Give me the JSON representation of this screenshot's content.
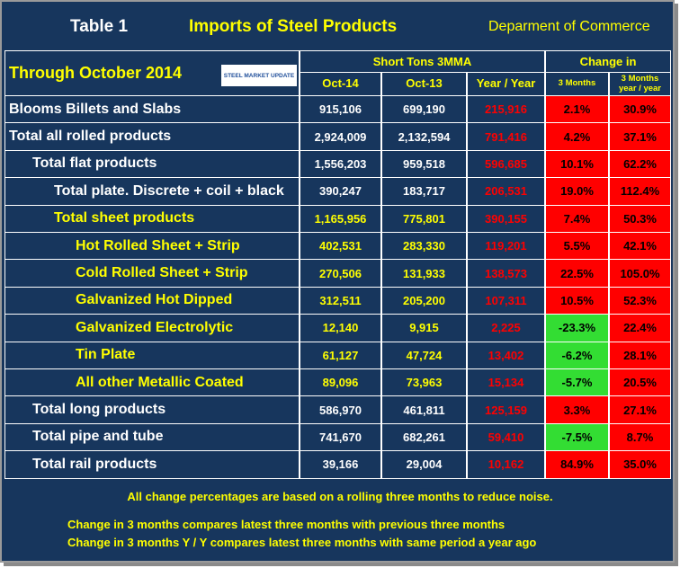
{
  "header": {
    "table_label": "Table 1",
    "title": "Imports of Steel Products",
    "source": "Deparment of Commerce",
    "period": "Through October 2014",
    "logo": "STEEL MARKET UPDATE"
  },
  "table": {
    "group_headers": [
      "Short Tons 3MMA",
      "Change in"
    ],
    "columns": [
      "Oct-14",
      "Oct-13",
      "Year / Year",
      "3 Months",
      "3 Months\nyear / year"
    ],
    "rows": [
      [
        "Blooms Billets and Slabs",
        "915,106",
        "699,190",
        "215,916",
        "2.1%",
        "30.9%"
      ],
      [
        "Total all rolled products",
        "2,924,009",
        "2,132,594",
        "791,416",
        "4.2%",
        "37.1%"
      ],
      [
        "Total flat products",
        "1,556,203",
        "959,518",
        "596,685",
        "10.1%",
        "62.2%"
      ],
      [
        "Total plate. Discrete + coil + black",
        "390,247",
        "183,717",
        "206,531",
        "19.0%",
        "112.4%"
      ],
      [
        "Total sheet products",
        "1,165,956",
        "775,801",
        "390,155",
        "7.4%",
        "50.3%"
      ],
      [
        "Hot Rolled Sheet + Strip",
        "402,531",
        "283,330",
        "119,201",
        "5.5%",
        "42.1%"
      ],
      [
        "Cold Rolled Sheet + Strip",
        "270,506",
        "131,933",
        "138,573",
        "22.5%",
        "105.0%"
      ],
      [
        "Galvanized Hot Dipped",
        "312,511",
        "205,200",
        "107,311",
        "10.5%",
        "52.3%"
      ],
      [
        "Galvanized Electrolytic",
        "12,140",
        "9,915",
        "2,225",
        "-23.3%",
        "22.4%"
      ],
      [
        "Tin Plate",
        "61,127",
        "47,724",
        "13,402",
        "-6.2%",
        "28.1%"
      ],
      [
        "All other Metallic Coated",
        "89,096",
        "73,963",
        "15,134",
        "-5.7%",
        "20.5%"
      ],
      [
        "Total long products",
        "586,970",
        "461,811",
        "125,159",
        "3.3%",
        "27.1%"
      ],
      [
        "Total pipe and tube",
        "741,670",
        "682,261",
        "59,410",
        "-7.5%",
        "8.7%"
      ],
      [
        "Total rail products",
        "39,166",
        "29,004",
        "10,162",
        "84.9%",
        "35.0%"
      ]
    ]
  },
  "notes": [
    "All change percentages are based on a rolling three months to reduce noise.",
    "Change in 3 months compares latest three months with previous three months",
    "Change in 3 months  Y / Y compares latest three months with same period a year ago"
  ]
}
